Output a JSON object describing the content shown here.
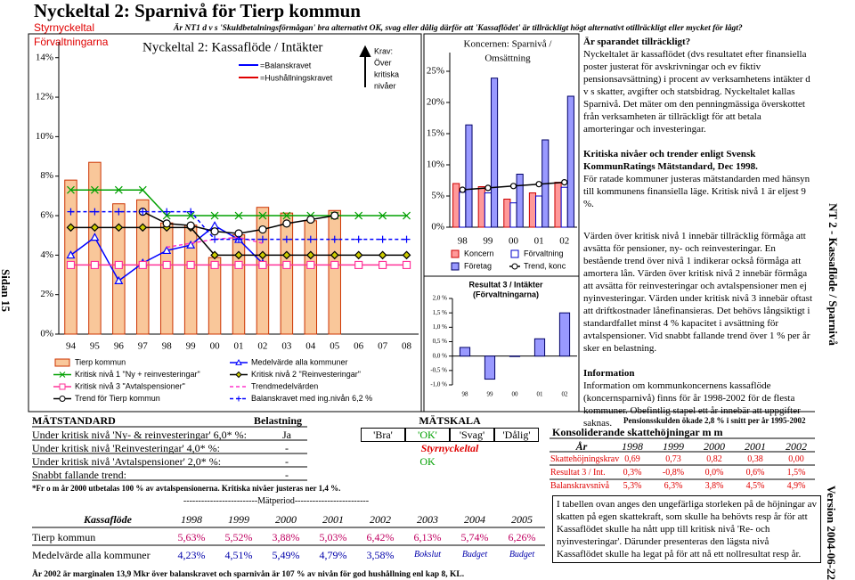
{
  "header": {
    "title": "Nyckeltal 2: Sparnivå för Tierp kommun",
    "label": "Styrnyckeltal",
    "question": "Är NT1 d v s 'Skuldbetalningsförmågan' bra alternativt OK, svag eller dålig därför att 'Kassaflödet' är tillräckligt högt alternativt otillräckligt eller mycket för lågt?"
  },
  "margin": {
    "left": "Sidan 15",
    "right_top": "NT 2 - Kassaflöde / Sparnivå",
    "right_bottom": "Version 2004-06-22"
  },
  "charts": {
    "main": {
      "type": "bar",
      "panel_label": "Förvaltningarna",
      "title": "Nyckeltal 2: Kassaflöde / Intäkter",
      "requirement": "Krav:",
      "requirement_text": [
        "Över",
        "kritiska",
        "nivåer"
      ],
      "key": [
        "=Balanskravet",
        "=Hushållningskravet"
      ],
      "categories": [
        "94",
        "95",
        "96",
        "97",
        "98",
        "99",
        "00",
        "01",
        "02",
        "03",
        "04",
        "05",
        "06",
        "07",
        "08"
      ],
      "ylim": [
        0,
        14.8
      ],
      "yticks": [
        {
          "value": 0,
          "label": "0%"
        },
        {
          "value": 2,
          "label": "2%"
        },
        {
          "value": 4,
          "label": "4%"
        },
        {
          "value": 6,
          "label": "6%"
        },
        {
          "value": 8,
          "label": "8%"
        },
        {
          "value": 10,
          "label": "10%"
        },
        {
          "value": 12,
          "label": "12%"
        },
        {
          "value": 14,
          "label": "14%"
        }
      ],
      "series": [
        {
          "name": "Tierp kommun",
          "type": "bar",
          "color": "#f9c79a",
          "edgecolor": "#cc3300",
          "values": [
            7.8,
            8.7,
            6.6,
            6.8,
            5.63,
            5.52,
            3.88,
            5.03,
            6.42,
            6.13,
            5.74,
            6.26,
            null,
            null,
            null
          ]
        },
        {
          "name": "Medelvärde alla kommuner",
          "type": "line",
          "color": "#0000ff",
          "marker": "triangle",
          "values": [
            4.0,
            4.9,
            2.7,
            3.6,
            4.23,
            4.51,
            5.49,
            4.79,
            3.58,
            null,
            null,
            null,
            null,
            null,
            null
          ]
        },
        {
          "name": "Kritisk nivå 1 \"Ny + reinvesteringar\"",
          "type": "line",
          "color": "#00a000",
          "marker": "x",
          "values": [
            7.3,
            7.3,
            7.3,
            7.3,
            6.0,
            6.0,
            6.0,
            6.0,
            6.0,
            6.0,
            6.0,
            6.0,
            6.0,
            6.0,
            6.0
          ]
        },
        {
          "name": "Kritisk nivå 2 \"Reinvesteringar\"",
          "type": "line",
          "color": "#000000",
          "marker": "diamond",
          "values": [
            5.4,
            5.4,
            5.4,
            5.4,
            5.4,
            5.4,
            4.0,
            4.0,
            4.0,
            4.0,
            4.0,
            4.0,
            4.0,
            4.0,
            4.0
          ]
        },
        {
          "name": "Kritisk nivå 3 \"Avtalspensioner\"",
          "type": "line",
          "color": "#ff3399",
          "marker": "square",
          "values": [
            3.5,
            3.5,
            3.5,
            3.5,
            3.5,
            3.5,
            3.5,
            3.5,
            3.5,
            3.5,
            3.5,
            3.5,
            3.5,
            3.5,
            3.5
          ]
        },
        {
          "name": "Trendmedelvärden",
          "type": "line",
          "color": "#ff33cc",
          "dash": true,
          "values": [
            null,
            null,
            null,
            null,
            4.4,
            4.6,
            4.8,
            4.9,
            4.6,
            null,
            null,
            null,
            null,
            null,
            null
          ]
        },
        {
          "name": "Trend för Tierp kommun",
          "type": "line",
          "color": "#000000",
          "marker": "circle",
          "values": [
            null,
            null,
            null,
            6.2,
            5.6,
            5.5,
            5.2,
            5.1,
            5.3,
            5.6,
            5.8,
            6.0,
            null,
            null,
            null
          ]
        },
        {
          "name": "Balanskravet med ing.nivån 6,2 %",
          "type": "line",
          "color": "#0000ff",
          "dash": true,
          "marker": "plus",
          "values": [
            6.2,
            6.2,
            6.2,
            6.2,
            6.2,
            6.2,
            4.8,
            4.8,
            4.8,
            4.8,
            4.8,
            4.8,
            4.8,
            4.8,
            4.8
          ]
        }
      ]
    },
    "koncern": {
      "type": "bar",
      "title": [
        "Koncernen: Sparnivå /",
        "Omsättning"
      ],
      "categories": [
        "98",
        "99",
        "00",
        "01",
        "02"
      ],
      "ylim": [
        0,
        28
      ],
      "yticks": [
        {
          "value": 0,
          "label": "0%"
        },
        {
          "value": 5,
          "label": "5%"
        },
        {
          "value": 10,
          "label": "10%"
        },
        {
          "value": 15,
          "label": "15%"
        },
        {
          "value": 20,
          "label": "20%"
        },
        {
          "value": 25,
          "label": "25%"
        }
      ],
      "series": [
        {
          "name": "Koncern",
          "type": "bar",
          "color": "#ff9999",
          "edgecolor": "#cc0000",
          "values": [
            7.0,
            6.5,
            4.5,
            5.5,
            7.2
          ]
        },
        {
          "name": "Förvaltning",
          "type": "bar",
          "color": "#ffffff",
          "edgecolor": "#0000cc",
          "values": [
            5.6,
            5.5,
            3.9,
            5.0,
            6.4
          ]
        },
        {
          "name": "Företag",
          "type": "bar",
          "color": "#9999ff",
          "edgecolor": "#000066",
          "values": [
            16.4,
            23.9,
            8.5,
            14.0,
            21.0
          ]
        },
        {
          "name": "Trend, konc",
          "type": "line",
          "color": "#000000",
          "marker": "circle",
          "values": [
            6.0,
            6.3,
            6.6,
            6.9,
            7.2
          ]
        }
      ]
    },
    "resultat": {
      "type": "bar",
      "title": [
        "Resultat 3 / Intäkter",
        "(Förvaltningarna)"
      ],
      "categories": [
        "98",
        "99",
        "00",
        "01",
        "02"
      ],
      "ylim": [
        -1.0,
        2.0
      ],
      "yticks": [
        {
          "value": -1.0,
          "label": "-1,0 %"
        },
        {
          "value": -0.5,
          "label": "-0,5 %"
        },
        {
          "value": 0,
          "label": "0,0 %"
        },
        {
          "value": 0.5,
          "label": "0,5 %"
        },
        {
          "value": 1.0,
          "label": "1,0 %"
        },
        {
          "value": 1.5,
          "label": "1,5 %"
        },
        {
          "value": 2.0,
          "label": "2,0 %"
        }
      ],
      "color": "#9999ff",
      "edgecolor": "#000066",
      "values": [
        0.3,
        -0.8,
        0.0,
        0.6,
        1.5
      ]
    }
  },
  "info": [
    {
      "heading": "Är sparandet tillräckligt?",
      "text": "Nyckeltalet är kassaflödet (dvs resultatet efter finansiella poster justerat för avskrivningar och ev fiktiv pensionsavsättning) i procent av verksamhetens intäkter d v s skatter, avgifter och statsbidrag. Nyckeltalet kallas Sparnivå. Det mäter om den penningmässiga överskottet från verksamheten är tillräckligt för att betala amorteringar och investeringar."
    },
    {
      "heading": "Kritiska nivåer och trender enligt Svensk KommunRatings Mätstandard, Dec 1998.",
      "text": "För ratade kommuner justeras mätstandarden med hänsyn till kommunens finansiella läge. Kritisk nivå 1 är eljest 9 %."
    },
    {
      "text": "Värden över kritisk nivå 1 innebär tillräcklig förmåga att avsätta för pensioner, ny- och reinvesteringar. En bestående trend över nivå 1 indikerar också förmåga att amortera lån. Värden över kritisk nivå 2 innebär förmåga att avsätta för reinvesteringar och avtalspensioner men ej nyinvesteringar. Värden under kritisk nivå 3 innebär oftast att driftkostnader lånefinansieras. Det behövs långsiktigt i standardfallet minst 4 % kapacitet i avsättning för avtalspensioner. Vid snabbt fallande trend över 1 % per år sker en belastning."
    },
    {
      "heading": "Information",
      "text": "Information om kommunkoncernens kassaflöde (koncernsparnivå) finns för år 1998-2002 för de flesta kommuner. Obefintlig stapel ett år innebär att uppgifter saknas."
    }
  ],
  "matstandard": {
    "headers": [
      "MÄTSTANDARD",
      "Belastning",
      "MÄTSKALA"
    ],
    "scale": [
      "'Bra'",
      "'OK'",
      "'Svag'",
      "'Dålig'"
    ],
    "rows": [
      [
        "Under kritisk nivå 'Ny- & reinvesteringar' 6,0* %:",
        "Ja"
      ],
      [
        "Under kritisk nivå 'Reinvesteringar' 4,0* %:",
        "-"
      ],
      [
        "Under kritisk nivå 'Avtalspensioner' 2,0* %:",
        "-"
      ],
      [
        "Snabbt fallande trend:",
        "-"
      ]
    ],
    "styrnyckeltal": "Styrnyckeltal",
    "result": "OK",
    "note": "*Fr o m år 2000 utbetalas 100 % av avtalspensionerna. Kritiska nivåer justeras ner 1,4 %."
  },
  "kassaflode": {
    "period": "-------------------------Mätperiod-------------------------",
    "header": [
      "Kassaflöde",
      "1998",
      "1999",
      "2000",
      "2001",
      "2002",
      "2003",
      "2004",
      "2005"
    ],
    "rows": [
      [
        "Tierp kommun",
        "5,63%",
        "5,52%",
        "3,88%",
        "5,03%",
        "6,42%",
        "6,13%",
        "5,74%",
        "6,26%"
      ],
      [
        "Medelvärde alla kommuner",
        "4,23%",
        "4,51%",
        "5,49%",
        "4,79%",
        "3,58%",
        "Bokslut",
        "Budget",
        "Budget"
      ]
    ]
  },
  "konsolidering": {
    "note": "Pensionsskulden ökade 2,8 % i snitt per år 1995-2002",
    "title": "Konsoliderande skattehöjningar m m",
    "header": [
      "År",
      "1998",
      "1999",
      "2000",
      "2001",
      "2002"
    ],
    "rows": [
      [
        "Skattehöjningskrav",
        "0,69",
        "0,73",
        "0,82",
        "0,38",
        "0,00"
      ],
      [
        "Resultat 3 / Int.",
        "0,3%",
        "-0,8%",
        "0,0%",
        "0,6%",
        "1,5%"
      ],
      [
        "Balanskravsnivå",
        "5,3%",
        "6,3%",
        "3,8%",
        "4,5%",
        "4,9%"
      ]
    ],
    "text": "I tabellen ovan anges den ungefärliga storleken på de höjningar av skatten på egen skattekraft, som skulle ha behövts resp år för att Kassaflödet skulle ha nått upp till kritisk nivå 'Re- och nyinvesteringar'. Därunder presenteras den lägsta nivå Kassaflödet skulle ha legat på för att nå ett nollresultat resp år."
  },
  "footer": "År 2002 är marginalen 13,9 Mkr över balanskravet och sparnivån är 107 % av nivån för god hushållning enl kap 8, KL."
}
